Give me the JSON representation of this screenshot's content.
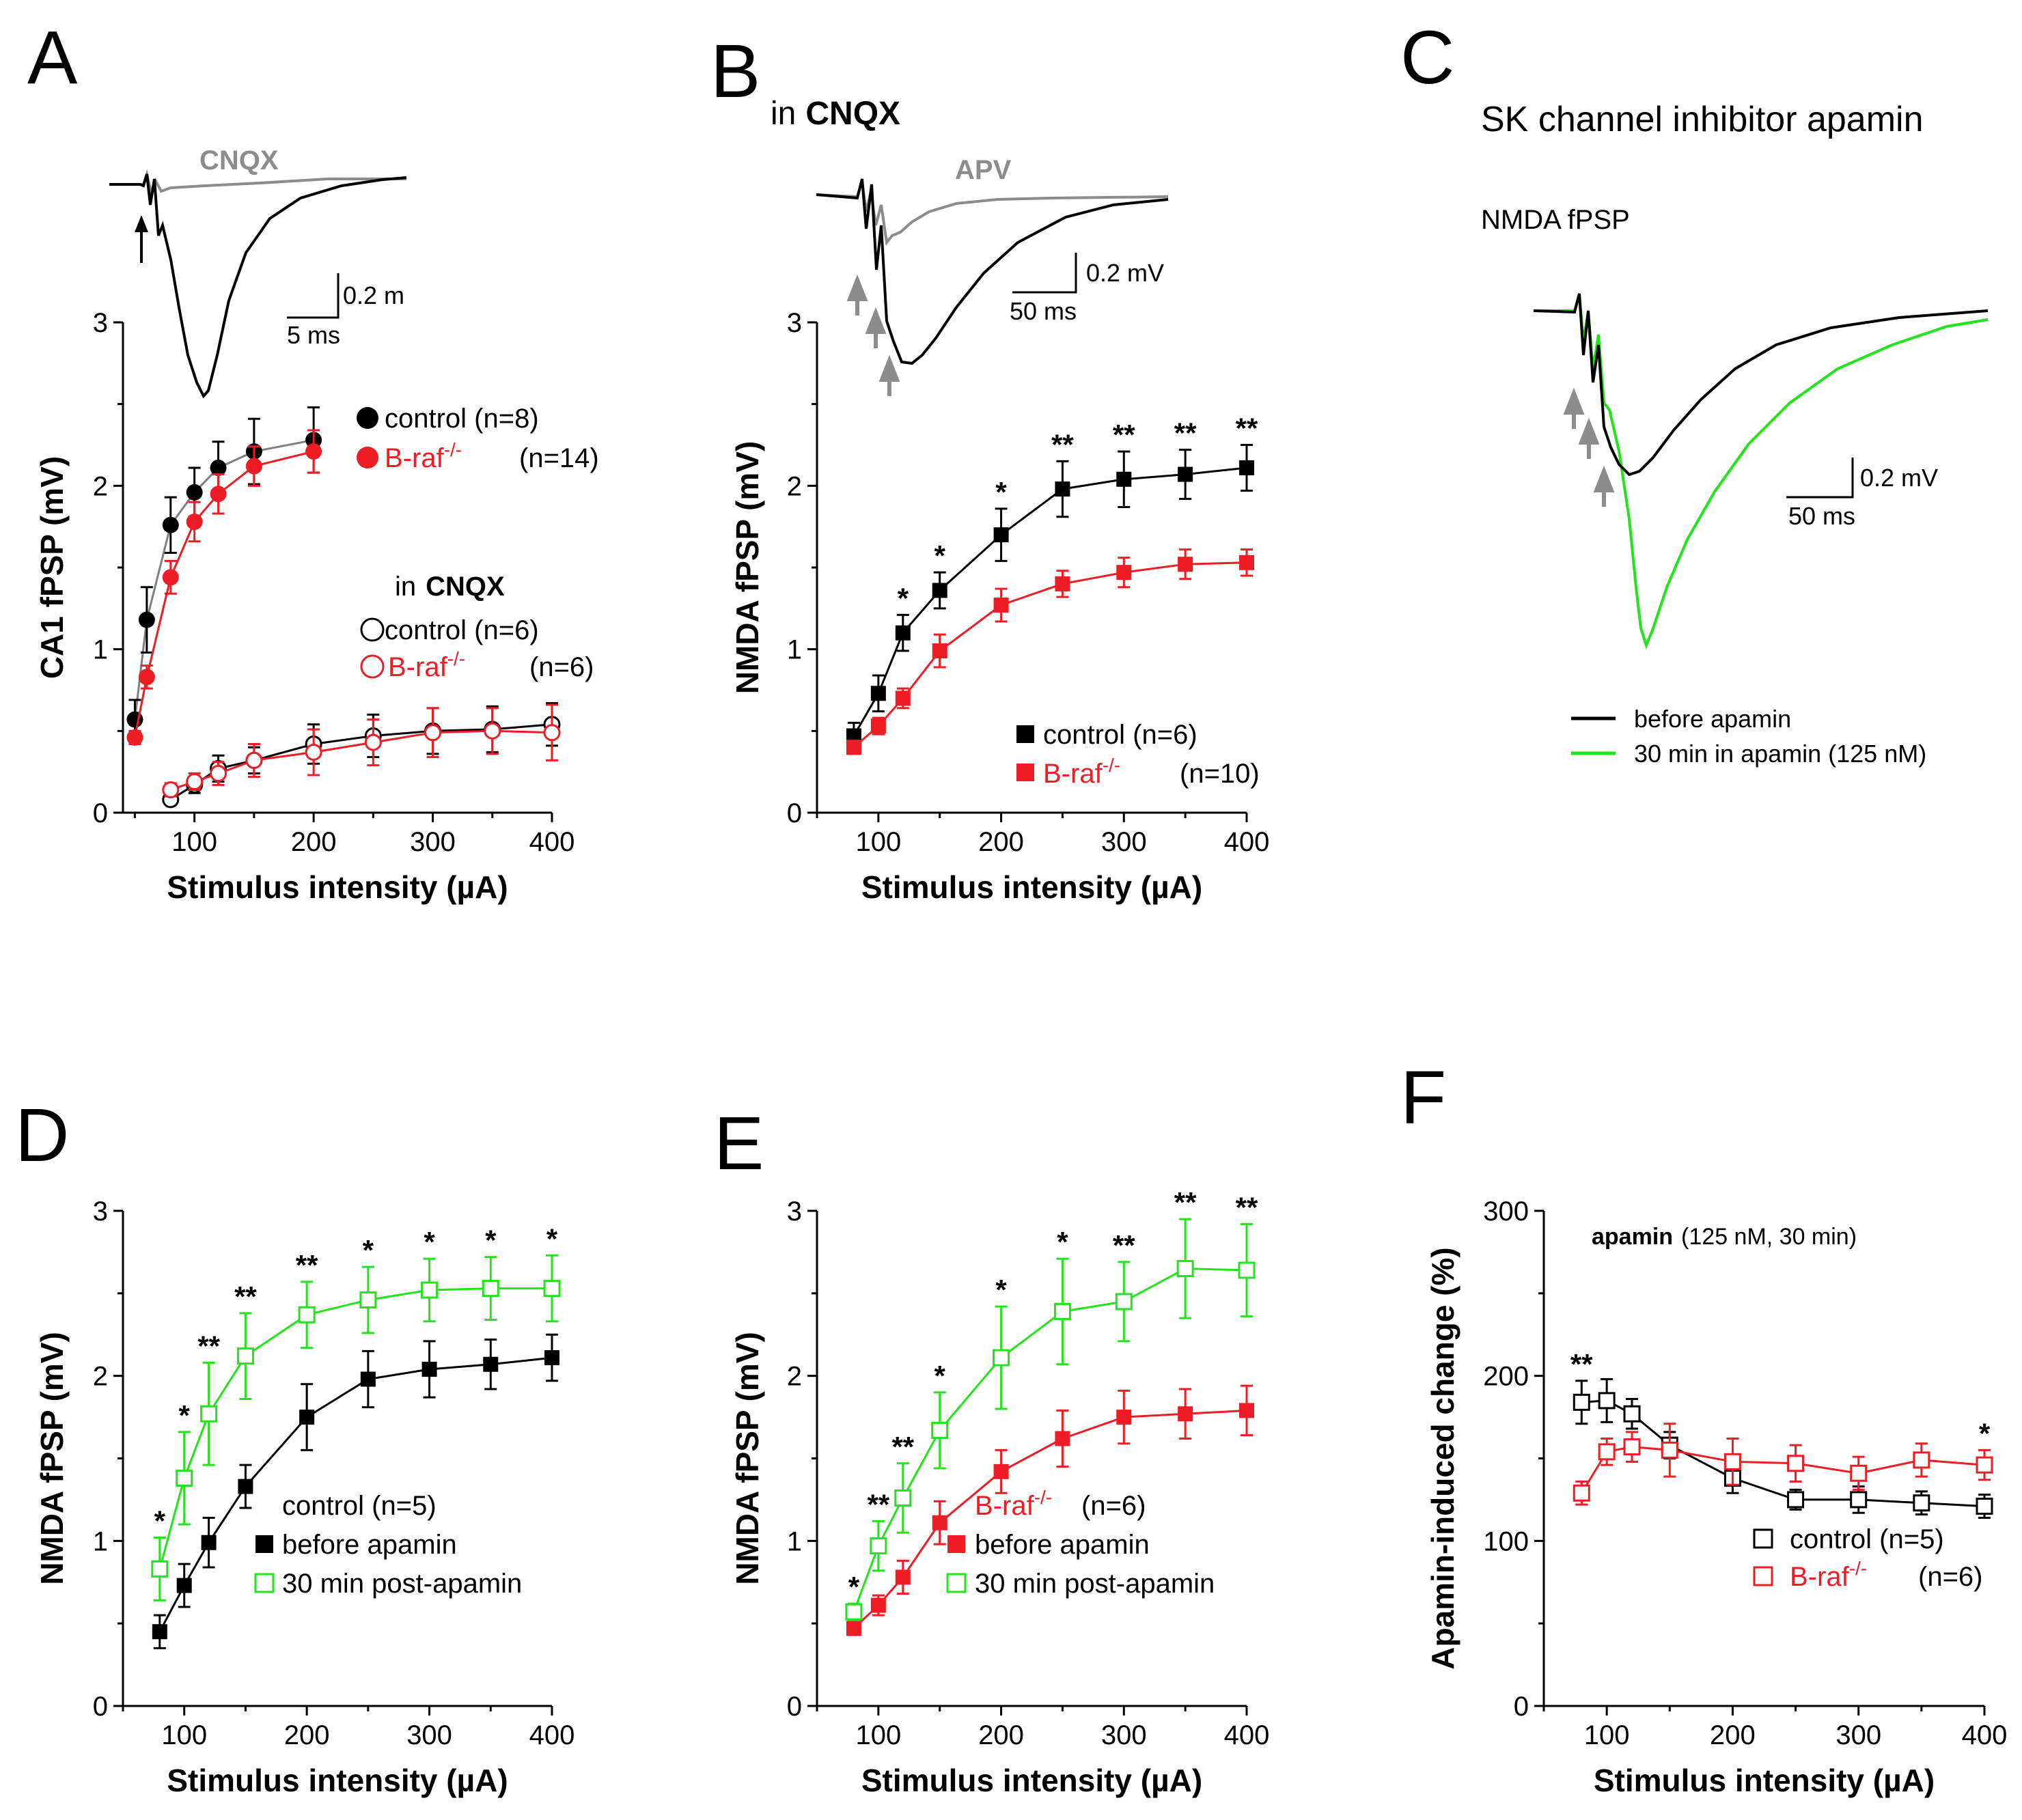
{
  "figure": {
    "panels": [
      "A",
      "B",
      "C",
      "D",
      "E",
      "F"
    ],
    "xlabel": "Stimulus intensity (µA)"
  },
  "colors": {
    "control": "#000000",
    "control_line": "#7f7f7f",
    "braf": "#ee1c25",
    "apamin": "#22e41a",
    "trace_gray": "#8c8c8c"
  },
  "panelA": {
    "trace_label": "CNQX",
    "scale_y": "0.2 m",
    "scale_x": "5 ms",
    "legend": {
      "control": "control (n=8)",
      "braf": "B-raf",
      "braf_sup": "-/-",
      "braf_n": "(n=14)",
      "in": "in",
      "cnqx": "CNQX",
      "control_cnqx": "control (n=6)",
      "braf_cnqx": "B-raf",
      "braf_cnqx_sup": "-/-",
      "braf_cnqx_n": "(n=6)"
    }
  },
  "panelB": {
    "title_in": "in",
    "title_drug": "CNQX",
    "trace_label": "APV",
    "scale_y": "0.2 mV",
    "scale_x": "50 ms",
    "legend": {
      "control": "control (n=6)",
      "braf": "B-raf",
      "braf_sup": "-/-",
      "braf_n": "(n=10)"
    }
  },
  "panelC": {
    "title": "SK channel inhibitor apamin",
    "subtitle": "NMDA fPSP",
    "scale_y": "0.2 mV",
    "scale_x": "50 ms",
    "legend": {
      "before": "before apamin",
      "after": "30 min in apamin (125 nM)"
    }
  },
  "panelD": {
    "legend": {
      "title": "control (n=5)",
      "before": "before apamin",
      "after": "30 min post-apamin"
    }
  },
  "panelE": {
    "legend": {
      "title": "B-raf",
      "title_sup": "-/-",
      "title_n": "(n=6)",
      "before": "before apamin",
      "after": "30 min post-apamin"
    }
  },
  "panelF": {
    "note_bold": "apamin",
    "note_rest": "(125 nM, 30 min)",
    "legend": {
      "control": "control (n=5)",
      "braf": "B-raf",
      "braf_sup": "-/-",
      "braf_n": "(n=6)"
    }
  },
  "chart_data": [
    {
      "panel": "A",
      "type": "scatter",
      "title": "",
      "xlabel": "Stimulus intensity (µA)",
      "ylabel": "CA1 fPSP (mV)",
      "xlim": [
        40,
        400
      ],
      "ylim": [
        0,
        3
      ],
      "xticks": [
        100,
        200,
        300,
        400
      ],
      "yticks": [
        0,
        1,
        2,
        3
      ],
      "series": [
        {
          "name": "control (n=8)",
          "marker": "circle-filled",
          "color": "control",
          "line": "control_line",
          "x": [
            50,
            60,
            80,
            100,
            120,
            150,
            200
          ],
          "y": [
            0.57,
            1.18,
            1.76,
            1.96,
            2.11,
            2.21,
            2.28
          ],
          "err": [
            0.12,
            0.2,
            0.17,
            0.15,
            0.16,
            0.2,
            0.2
          ]
        },
        {
          "name": "B-raf-/- (n=14)",
          "marker": "circle-filled",
          "color": "braf",
          "line": "braf",
          "x": [
            50,
            60,
            80,
            100,
            120,
            150,
            200
          ],
          "y": [
            0.46,
            0.83,
            1.44,
            1.78,
            1.95,
            2.12,
            2.21
          ],
          "err": [
            0.04,
            0.07,
            0.1,
            0.12,
            0.12,
            0.12,
            0.13
          ]
        },
        {
          "name": "control (n=6) in CNQX",
          "marker": "circle-open",
          "color": "control",
          "line": "control",
          "x": [
            80,
            100,
            120,
            150,
            200,
            250,
            300,
            350,
            400
          ],
          "y": [
            0.08,
            0.17,
            0.27,
            0.32,
            0.42,
            0.47,
            0.5,
            0.51,
            0.54
          ],
          "err": [
            0.03,
            0.05,
            0.08,
            0.08,
            0.12,
            0.13,
            0.14,
            0.14,
            0.13
          ]
        },
        {
          "name": "B-raf-/- (n=6) in CNQX",
          "marker": "circle-open",
          "color": "braf",
          "line": "braf",
          "x": [
            80,
            100,
            120,
            150,
            200,
            250,
            300,
            350,
            400
          ],
          "y": [
            0.14,
            0.19,
            0.24,
            0.32,
            0.37,
            0.43,
            0.49,
            0.5,
            0.49
          ],
          "err": [
            0.04,
            0.05,
            0.07,
            0.1,
            0.14,
            0.14,
            0.15,
            0.14,
            0.17
          ]
        }
      ],
      "annotations": []
    },
    {
      "panel": "B",
      "type": "line",
      "title": "in CNQX",
      "xlabel": "Stimulus intensity (µA)",
      "ylabel": "NMDA fPSP (mV)",
      "xlim": [
        50,
        400
      ],
      "ylim": [
        0,
        3
      ],
      "xticks": [
        100,
        200,
        300,
        400
      ],
      "yticks": [
        0,
        1,
        2,
        3
      ],
      "series": [
        {
          "name": "control (n=6)",
          "marker": "square-filled",
          "color": "control",
          "line": "control",
          "x": [
            80,
            100,
            120,
            150,
            200,
            250,
            300,
            350,
            400
          ],
          "y": [
            0.47,
            0.73,
            1.1,
            1.36,
            1.7,
            1.98,
            2.04,
            2.07,
            2.11
          ],
          "err": [
            0.08,
            0.11,
            0.11,
            0.11,
            0.16,
            0.17,
            0.17,
            0.15,
            0.14
          ]
        },
        {
          "name": "B-raf-/- (n=10)",
          "marker": "square-filled",
          "color": "braf",
          "line": "braf",
          "x": [
            80,
            100,
            120,
            150,
            200,
            250,
            300,
            350,
            400
          ],
          "y": [
            0.4,
            0.53,
            0.7,
            0.99,
            1.27,
            1.4,
            1.47,
            1.52,
            1.53
          ],
          "err": [
            0.04,
            0.05,
            0.06,
            0.1,
            0.1,
            0.08,
            0.09,
            0.09,
            0.08
          ]
        }
      ],
      "annotations": [
        {
          "x": 120,
          "label": "*"
        },
        {
          "x": 150,
          "label": "*"
        },
        {
          "x": 200,
          "label": "*"
        },
        {
          "x": 250,
          "label": "**"
        },
        {
          "x": 300,
          "label": "**"
        },
        {
          "x": 350,
          "label": "**"
        },
        {
          "x": 400,
          "label": "**"
        }
      ]
    },
    {
      "panel": "D",
      "type": "line",
      "title": "",
      "xlabel": "Stimulus intensity (µA)",
      "ylabel": "NMDA fPSP (mV)",
      "xlim": [
        50,
        400
      ],
      "ylim": [
        0,
        3
      ],
      "xticks": [
        100,
        200,
        300,
        400
      ],
      "yticks": [
        0,
        1,
        2,
        3
      ],
      "series": [
        {
          "name": "before apamin",
          "marker": "square-filled",
          "color": "control",
          "line": "control",
          "x": [
            80,
            100,
            120,
            150,
            200,
            250,
            300,
            350,
            400
          ],
          "y": [
            0.45,
            0.73,
            0.99,
            1.33,
            1.75,
            1.98,
            2.04,
            2.07,
            2.11
          ],
          "err": [
            0.1,
            0.13,
            0.15,
            0.13,
            0.2,
            0.17,
            0.17,
            0.15,
            0.14
          ]
        },
        {
          "name": "30 min post-apamin",
          "marker": "square-open",
          "color": "apamin",
          "line": "apamin",
          "x": [
            80,
            100,
            120,
            150,
            200,
            250,
            300,
            350,
            400
          ],
          "y": [
            0.83,
            1.38,
            1.77,
            2.12,
            2.37,
            2.46,
            2.52,
            2.53,
            2.53
          ],
          "err": [
            0.19,
            0.28,
            0.31,
            0.26,
            0.2,
            0.2,
            0.19,
            0.19,
            0.2
          ]
        }
      ],
      "annotations": [
        {
          "x": 80,
          "label": "*"
        },
        {
          "x": 100,
          "label": "*"
        },
        {
          "x": 120,
          "label": "**"
        },
        {
          "x": 150,
          "label": "**"
        },
        {
          "x": 200,
          "label": "**"
        },
        {
          "x": 250,
          "label": "*"
        },
        {
          "x": 300,
          "label": "*"
        },
        {
          "x": 350,
          "label": "*"
        },
        {
          "x": 400,
          "label": "*"
        }
      ]
    },
    {
      "panel": "E",
      "type": "line",
      "title": "",
      "xlabel": "Stimulus intensity (µA)",
      "ylabel": "NMDA fPSP (mV)",
      "xlim": [
        50,
        400
      ],
      "ylim": [
        0,
        3
      ],
      "xticks": [
        100,
        200,
        300,
        400
      ],
      "yticks": [
        0,
        1,
        2,
        3
      ],
      "series": [
        {
          "name": "before apamin",
          "marker": "square-filled",
          "color": "braf",
          "line": "braf",
          "x": [
            80,
            100,
            120,
            150,
            200,
            250,
            300,
            350,
            400
          ],
          "y": [
            0.47,
            0.61,
            0.78,
            1.11,
            1.42,
            1.62,
            1.75,
            1.77,
            1.79
          ],
          "err": [
            0.04,
            0.06,
            0.1,
            0.13,
            0.13,
            0.17,
            0.16,
            0.15,
            0.15
          ]
        },
        {
          "name": "30 min post-apamin",
          "marker": "square-open",
          "color": "apamin",
          "line": "apamin",
          "x": [
            80,
            100,
            120,
            150,
            200,
            250,
            300,
            350,
            400
          ],
          "y": [
            0.57,
            0.97,
            1.26,
            1.67,
            2.11,
            2.39,
            2.45,
            2.65,
            2.64
          ],
          "err": [
            0.05,
            0.15,
            0.21,
            0.23,
            0.31,
            0.32,
            0.24,
            0.3,
            0.28
          ]
        }
      ],
      "annotations": [
        {
          "x": 80,
          "label": "*"
        },
        {
          "x": 100,
          "label": "**"
        },
        {
          "x": 120,
          "label": "**"
        },
        {
          "x": 150,
          "label": "*"
        },
        {
          "x": 200,
          "label": "*"
        },
        {
          "x": 250,
          "label": "*"
        },
        {
          "x": 300,
          "label": "**"
        },
        {
          "x": 350,
          "label": "**"
        },
        {
          "x": 400,
          "label": "**"
        }
      ]
    },
    {
      "panel": "F",
      "type": "line",
      "title": "",
      "xlabel": "Stimulus intensity (µA)",
      "ylabel": "Apamin-induced change (%)",
      "xlim": [
        50,
        400
      ],
      "ylim": [
        0,
        300
      ],
      "xticks": [
        100,
        200,
        300,
        400
      ],
      "yticks": [
        0,
        100,
        200,
        300
      ],
      "series": [
        {
          "name": "control (n=5)",
          "marker": "square-open",
          "color": "control",
          "line": "control",
          "x": [
            80,
            100,
            120,
            150,
            200,
            250,
            300,
            350,
            400
          ],
          "y": [
            184,
            185,
            177,
            158,
            138,
            125,
            125,
            123,
            121
          ],
          "err": [
            13,
            13,
            9,
            8,
            9,
            6,
            8,
            7,
            7
          ]
        },
        {
          "name": "B-raf-/- (n=6)",
          "marker": "square-open",
          "color": "braf",
          "line": "braf",
          "x": [
            80,
            100,
            120,
            150,
            200,
            250,
            300,
            350,
            400
          ],
          "y": [
            129,
            154,
            157,
            155,
            148,
            147,
            141,
            149,
            146
          ],
          "err": [
            7,
            8,
            9,
            16,
            14,
            11,
            10,
            10,
            9
          ]
        }
      ],
      "annotations": [
        {
          "x": 80,
          "label": "**"
        },
        {
          "x": 400,
          "label": "*"
        }
      ]
    }
  ]
}
